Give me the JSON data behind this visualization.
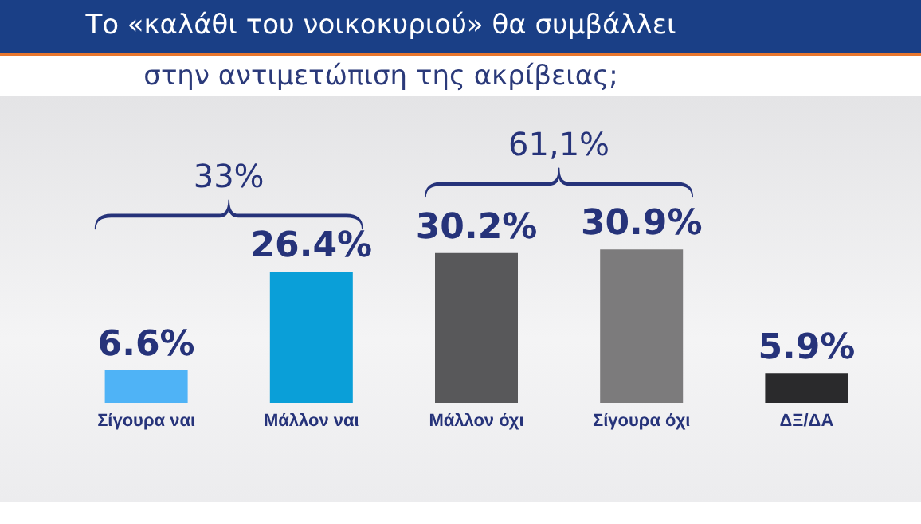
{
  "chart_data": {
    "type": "bar",
    "title": "Το «καλάθι του νοικοκυριού» θα συμβάλλει",
    "subtitle": "στην αντιμετώπιση της ακρίβειας;",
    "categories": [
      "Σίγουρα ναι",
      "Μάλλον ναι",
      "Μάλλον όχι",
      "Σίγουρα όχι",
      "ΔΞ/ΔΑ"
    ],
    "values": [
      6.6,
      26.4,
      30.2,
      30.9,
      5.9
    ],
    "colors": [
      "#4fb3f6",
      "#0a9fd8",
      "#58585a",
      "#7c7b7c",
      "#2a2a2c"
    ],
    "value_labels": [
      "6.6%",
      "26.4%",
      "30.2%",
      "30.9%",
      "5.9%"
    ],
    "annotations": [
      "33%",
      "61,1%"
    ]
  }
}
